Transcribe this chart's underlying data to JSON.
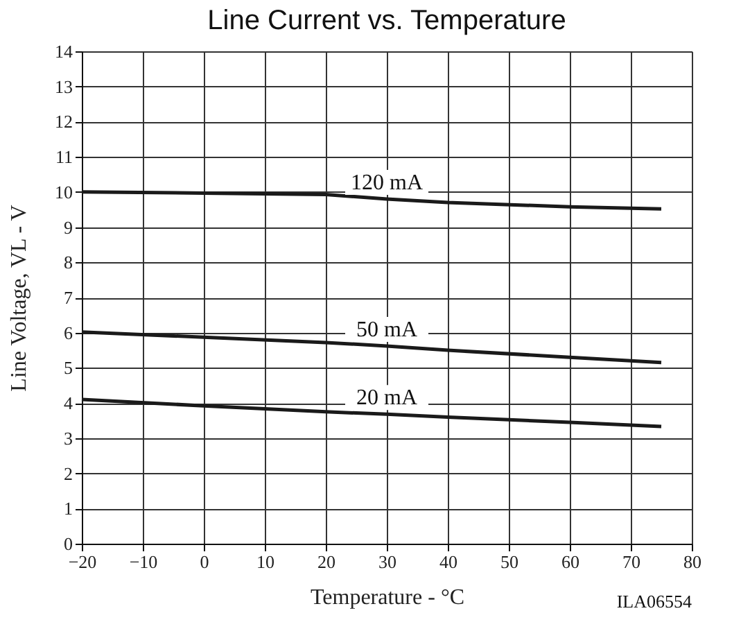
{
  "chart_data": {
    "type": "line",
    "title": "Line Current vs. Temperature",
    "xlabel": "Temperature - °C",
    "ylabel": "Line Voltage, VL - V",
    "x": [
      -20,
      0,
      20,
      30,
      40,
      60,
      75
    ],
    "series": [
      {
        "name": "120 mA",
        "color": "#1a1a1a",
        "values": [
          10.0,
          9.97,
          9.93,
          9.8,
          9.7,
          9.58,
          9.52
        ]
      },
      {
        "name": "50 mA",
        "color": "#1a1a1a",
        "values": [
          6.02,
          5.87,
          5.72,
          5.62,
          5.5,
          5.3,
          5.15
        ]
      },
      {
        "name": "20 mA",
        "color": "#1a1a1a",
        "values": [
          4.1,
          3.92,
          3.75,
          3.68,
          3.6,
          3.45,
          3.33
        ]
      }
    ],
    "xlim": [
      -20,
      80
    ],
    "xticks": [
      -20,
      -10,
      0,
      10,
      20,
      30,
      40,
      50,
      60,
      70,
      80
    ],
    "ylim": [
      0,
      14
    ],
    "yticks": [
      0,
      1,
      2,
      3,
      4,
      5,
      6,
      7,
      8,
      9,
      10,
      11,
      12,
      13,
      14
    ],
    "grid": true,
    "legend": false,
    "line_style": "solid",
    "marker": "none",
    "annotations": [
      "ILA06554"
    ]
  }
}
